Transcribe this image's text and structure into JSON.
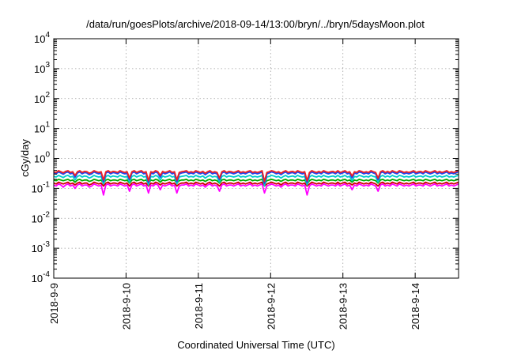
{
  "chart_data": {
    "type": "line",
    "title": "/data/run/goesPlots/archive/2018-09-14/13:00/bryn/../bryn/5daysMoon.plot",
    "xlabel": "Coordinated Universal Time (UTC)",
    "ylabel": "cGy/day",
    "y_scale": "log",
    "ylim": [
      0.0001,
      10000
    ],
    "xlim_days": [
      0,
      5.6
    ],
    "x_ticks": [
      {
        "day": 0,
        "label": "2018-9-9"
      },
      {
        "day": 1,
        "label": "2018-9-10"
      },
      {
        "day": 2,
        "label": "2018-9-11"
      },
      {
        "day": 3,
        "label": "2018-9-12"
      },
      {
        "day": 4,
        "label": "2018-9-13"
      },
      {
        "day": 5,
        "label": "2018-9-14"
      }
    ],
    "y_ticks": [
      {
        "value": 0.0001,
        "base": "10",
        "exp": "-4"
      },
      {
        "value": 0.001,
        "base": "10",
        "exp": "-3"
      },
      {
        "value": 0.01,
        "base": "10",
        "exp": "-2"
      },
      {
        "value": 0.1,
        "base": "10",
        "exp": "-1"
      },
      {
        "value": 1,
        "base": "10",
        "exp": "0"
      },
      {
        "value": 10,
        "base": "10",
        "exp": "1"
      },
      {
        "value": 100,
        "base": "10",
        "exp": "2"
      },
      {
        "value": 1000,
        "base": "10",
        "exp": "3"
      },
      {
        "value": 10000,
        "base": "10",
        "exp": "4"
      }
    ],
    "grid": true,
    "legend": "none",
    "series": [
      {
        "color": "#ff00ff",
        "base": 0.13,
        "values": [
          0.13,
          0.12,
          0.14,
          0.13,
          0.11,
          0.13,
          0.14,
          0.12,
          0.13,
          0.1,
          0.13,
          0.14,
          0.12,
          0.13,
          0.13,
          0.11,
          0.12,
          0.14,
          0.13,
          0.12,
          0.13,
          0.06,
          0.13,
          0.14,
          0.12,
          0.13,
          0.13,
          0.12,
          0.14,
          0.13,
          0.12,
          0.13,
          0.08,
          0.13,
          0.14,
          0.12,
          0.13,
          0.14,
          0.12,
          0.13,
          0.07,
          0.13,
          0.12,
          0.14,
          0.13,
          0.09,
          0.13,
          0.12,
          0.13,
          0.14,
          0.12,
          0.13,
          0.07,
          0.12,
          0.13,
          0.13,
          0.14,
          0.12,
          0.13,
          0.12,
          0.14,
          0.13,
          0.12,
          0.13,
          0.11,
          0.13,
          0.14,
          0.12,
          0.13,
          0.12,
          0.08,
          0.13,
          0.14,
          0.12,
          0.13,
          0.13,
          0.12,
          0.13,
          0.14,
          0.12,
          0.13,
          0.12,
          0.13,
          0.14,
          0.12,
          0.13,
          0.12,
          0.13,
          0.14,
          0.07,
          0.12,
          0.13,
          0.14,
          0.13,
          0.12,
          0.13,
          0.11,
          0.13,
          0.14,
          0.12,
          0.13,
          0.13,
          0.12,
          0.14,
          0.13,
          0.12,
          0.13,
          0.06,
          0.12,
          0.14,
          0.13,
          0.12,
          0.13,
          0.12,
          0.14,
          0.13,
          0.12,
          0.13,
          0.13,
          0.12,
          0.14,
          0.12,
          0.13,
          0.14,
          0.12,
          0.13,
          0.09,
          0.13,
          0.12,
          0.14,
          0.13,
          0.12,
          0.13,
          0.12,
          0.14,
          0.13,
          0.12,
          0.08,
          0.13,
          0.14,
          0.12,
          0.13,
          0.12,
          0.14,
          0.13,
          0.12,
          0.14,
          0.13,
          0.12,
          0.13,
          0.12,
          0.13,
          0.14,
          0.12,
          0.13,
          0.13,
          0.12,
          0.14,
          0.13,
          0.12,
          0.13,
          0.14,
          0.12,
          0.13,
          0.12,
          0.13,
          0.14,
          0.12,
          0.13,
          0.12,
          0.13,
          0.14
        ]
      },
      {
        "color": "#cc0000",
        "base": 0.15,
        "values": [
          0.15,
          0.14,
          0.16,
          0.15,
          0.14,
          0.15,
          0.16,
          0.14,
          0.15,
          0.13,
          0.15,
          0.16,
          0.14,
          0.15,
          0.15,
          0.13,
          0.14,
          0.16,
          0.15,
          0.14,
          0.15,
          0.12,
          0.15,
          0.16,
          0.14,
          0.15,
          0.15,
          0.14,
          0.16,
          0.15,
          0.14,
          0.15,
          0.12,
          0.15,
          0.16,
          0.14,
          0.15,
          0.16,
          0.14,
          0.15,
          0.12,
          0.15,
          0.14,
          0.16,
          0.15,
          0.13,
          0.15,
          0.14,
          0.15,
          0.16,
          0.14,
          0.15,
          0.12,
          0.14,
          0.15,
          0.15,
          0.16,
          0.14,
          0.15,
          0.14,
          0.16,
          0.15,
          0.14,
          0.15,
          0.13,
          0.15,
          0.16,
          0.14,
          0.15,
          0.14,
          0.12,
          0.15,
          0.16,
          0.14,
          0.15,
          0.15,
          0.14,
          0.15,
          0.16,
          0.14,
          0.15,
          0.14,
          0.15,
          0.16,
          0.14,
          0.15,
          0.14,
          0.15,
          0.16,
          0.12,
          0.14,
          0.15,
          0.16,
          0.15,
          0.14,
          0.15,
          0.13,
          0.15,
          0.16,
          0.14,
          0.15,
          0.15,
          0.14,
          0.16,
          0.15,
          0.14,
          0.15,
          0.12,
          0.14,
          0.16,
          0.15,
          0.14,
          0.15,
          0.14,
          0.16,
          0.15,
          0.14,
          0.15,
          0.15,
          0.14,
          0.16,
          0.14,
          0.15,
          0.16,
          0.14,
          0.15,
          0.13,
          0.15,
          0.14,
          0.16,
          0.15,
          0.14,
          0.15,
          0.14,
          0.16,
          0.15,
          0.14,
          0.12,
          0.15,
          0.16,
          0.14,
          0.15,
          0.14,
          0.16,
          0.15,
          0.14,
          0.16,
          0.15,
          0.14,
          0.15,
          0.14,
          0.15,
          0.16,
          0.14,
          0.15,
          0.15,
          0.14,
          0.16,
          0.15,
          0.14,
          0.15,
          0.16,
          0.14,
          0.15,
          0.14,
          0.15,
          0.16,
          0.14,
          0.15,
          0.14,
          0.15,
          0.16
        ]
      },
      {
        "color": "#00aa00",
        "base": 0.19,
        "values": [
          0.19,
          0.18,
          0.2,
          0.19,
          0.18,
          0.19,
          0.2,
          0.18,
          0.19,
          0.16,
          0.19,
          0.2,
          0.18,
          0.19,
          0.19,
          0.17,
          0.18,
          0.2,
          0.19,
          0.18,
          0.19,
          0.15,
          0.19,
          0.2,
          0.18,
          0.19,
          0.19,
          0.18,
          0.2,
          0.19,
          0.18,
          0.19,
          0.15,
          0.19,
          0.2,
          0.18,
          0.19,
          0.2,
          0.18,
          0.19,
          0.15,
          0.19,
          0.18,
          0.2,
          0.19,
          0.16,
          0.19,
          0.18,
          0.19,
          0.2,
          0.18,
          0.19,
          0.15,
          0.18,
          0.19,
          0.19,
          0.2,
          0.18,
          0.19,
          0.18,
          0.2,
          0.19,
          0.18,
          0.19,
          0.17,
          0.19,
          0.2,
          0.18,
          0.19,
          0.18,
          0.15,
          0.19,
          0.2,
          0.18,
          0.19,
          0.19,
          0.18,
          0.19,
          0.2,
          0.18,
          0.19,
          0.18,
          0.19,
          0.2,
          0.18,
          0.19,
          0.18,
          0.19,
          0.2,
          0.14,
          0.18,
          0.19,
          0.2,
          0.19,
          0.18,
          0.19,
          0.17,
          0.19,
          0.2,
          0.18,
          0.19,
          0.19,
          0.18,
          0.2,
          0.19,
          0.18,
          0.19,
          0.14,
          0.18,
          0.2,
          0.19,
          0.18,
          0.19,
          0.18,
          0.2,
          0.19,
          0.18,
          0.19,
          0.19,
          0.18,
          0.2,
          0.18,
          0.19,
          0.2,
          0.18,
          0.19,
          0.16,
          0.19,
          0.18,
          0.2,
          0.19,
          0.18,
          0.19,
          0.18,
          0.2,
          0.19,
          0.18,
          0.15,
          0.19,
          0.2,
          0.18,
          0.19,
          0.18,
          0.2,
          0.19,
          0.18,
          0.2,
          0.19,
          0.18,
          0.19,
          0.18,
          0.19,
          0.2,
          0.18,
          0.19,
          0.19,
          0.18,
          0.2,
          0.19,
          0.18,
          0.19,
          0.2,
          0.18,
          0.19,
          0.18,
          0.19,
          0.2,
          0.18,
          0.19,
          0.18,
          0.19,
          0.2
        ]
      },
      {
        "color": "#00cccc",
        "base": 0.25,
        "values": [
          0.25,
          0.24,
          0.27,
          0.25,
          0.23,
          0.26,
          0.27,
          0.24,
          0.25,
          0.19,
          0.25,
          0.27,
          0.24,
          0.26,
          0.25,
          0.22,
          0.24,
          0.27,
          0.25,
          0.24,
          0.25,
          0.14,
          0.25,
          0.27,
          0.24,
          0.26,
          0.25,
          0.24,
          0.27,
          0.25,
          0.24,
          0.25,
          0.16,
          0.25,
          0.27,
          0.24,
          0.26,
          0.27,
          0.24,
          0.25,
          0.13,
          0.25,
          0.24,
          0.27,
          0.25,
          0.19,
          0.26,
          0.24,
          0.25,
          0.27,
          0.24,
          0.25,
          0.14,
          0.24,
          0.25,
          0.26,
          0.27,
          0.24,
          0.25,
          0.24,
          0.27,
          0.25,
          0.24,
          0.26,
          0.22,
          0.25,
          0.27,
          0.24,
          0.25,
          0.24,
          0.16,
          0.25,
          0.27,
          0.24,
          0.26,
          0.25,
          0.24,
          0.25,
          0.27,
          0.24,
          0.25,
          0.24,
          0.26,
          0.27,
          0.24,
          0.25,
          0.24,
          0.25,
          0.27,
          0.12,
          0.24,
          0.25,
          0.27,
          0.26,
          0.24,
          0.25,
          0.22,
          0.25,
          0.27,
          0.24,
          0.25,
          0.26,
          0.24,
          0.27,
          0.25,
          0.24,
          0.25,
          0.13,
          0.24,
          0.27,
          0.25,
          0.24,
          0.26,
          0.24,
          0.27,
          0.25,
          0.24,
          0.25,
          0.26,
          0.24,
          0.27,
          0.24,
          0.25,
          0.27,
          0.24,
          0.25,
          0.18,
          0.25,
          0.24,
          0.27,
          0.26,
          0.24,
          0.25,
          0.24,
          0.27,
          0.25,
          0.24,
          0.16,
          0.25,
          0.27,
          0.24,
          0.26,
          0.24,
          0.27,
          0.25,
          0.24,
          0.27,
          0.26,
          0.24,
          0.25,
          0.24,
          0.25,
          0.27,
          0.24,
          0.25,
          0.26,
          0.24,
          0.27,
          0.25,
          0.24,
          0.25,
          0.27,
          0.24,
          0.26,
          0.24,
          0.25,
          0.27,
          0.24,
          0.25,
          0.24,
          0.26,
          0.27
        ]
      },
      {
        "color": "#2244ee",
        "base": 0.33,
        "values": [
          0.33,
          0.31,
          0.36,
          0.33,
          0.3,
          0.34,
          0.36,
          0.31,
          0.33,
          0.24,
          0.33,
          0.36,
          0.31,
          0.34,
          0.33,
          0.29,
          0.31,
          0.36,
          0.33,
          0.31,
          0.33,
          0.17,
          0.33,
          0.36,
          0.31,
          0.34,
          0.33,
          0.31,
          0.36,
          0.33,
          0.31,
          0.33,
          0.2,
          0.33,
          0.36,
          0.31,
          0.34,
          0.36,
          0.31,
          0.33,
          0.16,
          0.33,
          0.31,
          0.36,
          0.33,
          0.24,
          0.34,
          0.31,
          0.33,
          0.36,
          0.31,
          0.33,
          0.17,
          0.31,
          0.33,
          0.34,
          0.36,
          0.31,
          0.33,
          0.31,
          0.36,
          0.33,
          0.31,
          0.34,
          0.29,
          0.33,
          0.36,
          0.31,
          0.33,
          0.31,
          0.2,
          0.33,
          0.36,
          0.31,
          0.34,
          0.33,
          0.31,
          0.33,
          0.36,
          0.31,
          0.33,
          0.31,
          0.34,
          0.36,
          0.31,
          0.33,
          0.31,
          0.33,
          0.36,
          0.15,
          0.31,
          0.33,
          0.36,
          0.34,
          0.31,
          0.33,
          0.29,
          0.33,
          0.36,
          0.31,
          0.33,
          0.34,
          0.31,
          0.36,
          0.33,
          0.31,
          0.33,
          0.16,
          0.31,
          0.36,
          0.33,
          0.31,
          0.34,
          0.31,
          0.36,
          0.33,
          0.31,
          0.33,
          0.34,
          0.31,
          0.36,
          0.31,
          0.33,
          0.36,
          0.31,
          0.33,
          0.23,
          0.33,
          0.31,
          0.36,
          0.34,
          0.31,
          0.33,
          0.31,
          0.36,
          0.33,
          0.31,
          0.2,
          0.33,
          0.36,
          0.31,
          0.34,
          0.31,
          0.36,
          0.33,
          0.31,
          0.36,
          0.34,
          0.31,
          0.33,
          0.31,
          0.33,
          0.36,
          0.31,
          0.33,
          0.34,
          0.31,
          0.36,
          0.33,
          0.31,
          0.33,
          0.36,
          0.31,
          0.34,
          0.31,
          0.33,
          0.36,
          0.31,
          0.33,
          0.31,
          0.34,
          0.36
        ]
      },
      {
        "color": "#ee2222",
        "base": 0.36,
        "values": [
          0.36,
          0.34,
          0.39,
          0.36,
          0.33,
          0.37,
          0.39,
          0.34,
          0.36,
          0.27,
          0.36,
          0.39,
          0.34,
          0.37,
          0.36,
          0.32,
          0.34,
          0.39,
          0.36,
          0.34,
          0.36,
          0.19,
          0.36,
          0.39,
          0.34,
          0.37,
          0.36,
          0.34,
          0.39,
          0.36,
          0.34,
          0.36,
          0.22,
          0.36,
          0.39,
          0.34,
          0.37,
          0.39,
          0.34,
          0.36,
          0.18,
          0.36,
          0.34,
          0.39,
          0.36,
          0.27,
          0.37,
          0.34,
          0.36,
          0.39,
          0.34,
          0.36,
          0.19,
          0.34,
          0.36,
          0.37,
          0.39,
          0.34,
          0.36,
          0.34,
          0.39,
          0.36,
          0.34,
          0.37,
          0.32,
          0.36,
          0.39,
          0.34,
          0.36,
          0.34,
          0.22,
          0.36,
          0.39,
          0.34,
          0.37,
          0.36,
          0.34,
          0.36,
          0.39,
          0.34,
          0.36,
          0.34,
          0.37,
          0.39,
          0.34,
          0.36,
          0.34,
          0.36,
          0.39,
          0.17,
          0.34,
          0.36,
          0.39,
          0.37,
          0.34,
          0.36,
          0.32,
          0.36,
          0.39,
          0.34,
          0.36,
          0.37,
          0.34,
          0.39,
          0.36,
          0.34,
          0.36,
          0.18,
          0.34,
          0.39,
          0.36,
          0.34,
          0.37,
          0.34,
          0.39,
          0.36,
          0.34,
          0.36,
          0.37,
          0.34,
          0.39,
          0.34,
          0.36,
          0.39,
          0.34,
          0.36,
          0.26,
          0.36,
          0.34,
          0.39,
          0.37,
          0.34,
          0.36,
          0.34,
          0.39,
          0.36,
          0.34,
          0.22,
          0.36,
          0.39,
          0.34,
          0.37,
          0.34,
          0.39,
          0.36,
          0.34,
          0.39,
          0.37,
          0.34,
          0.36,
          0.34,
          0.36,
          0.39,
          0.34,
          0.36,
          0.37,
          0.34,
          0.39,
          0.36,
          0.34,
          0.36,
          0.39,
          0.34,
          0.37,
          0.34,
          0.36,
          0.39,
          0.34,
          0.36,
          0.34,
          0.37,
          0.39
        ]
      }
    ]
  }
}
